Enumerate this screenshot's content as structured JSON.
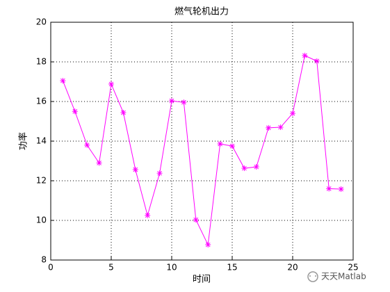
{
  "chart_data": {
    "type": "line",
    "title": "燃气轮机出力",
    "xlabel": "时间",
    "ylabel": "功率",
    "x": [
      1,
      2,
      3,
      4,
      5,
      6,
      7,
      8,
      9,
      10,
      11,
      12,
      13,
      14,
      15,
      16,
      17,
      18,
      19,
      20,
      21,
      22,
      23,
      24
    ],
    "series": [
      {
        "name": "功率",
        "color": "#ff00ff",
        "values": [
          17.05,
          15.5,
          13.8,
          12.9,
          16.88,
          15.44,
          12.56,
          10.25,
          12.38,
          16.03,
          15.96,
          10.03,
          8.77,
          13.86,
          13.75,
          12.63,
          12.7,
          14.67,
          14.7,
          15.4,
          18.32,
          18.04,
          11.6,
          11.58
        ]
      }
    ],
    "xlim": [
      0,
      25
    ],
    "xticks": [
      0,
      5,
      10,
      15,
      20,
      25
    ],
    "ylim": [
      8,
      20
    ],
    "yticks": [
      8,
      10,
      12,
      14,
      16,
      18,
      20
    ],
    "grid": true,
    "marker": "asterisk",
    "watermark": "天天Matlab"
  }
}
